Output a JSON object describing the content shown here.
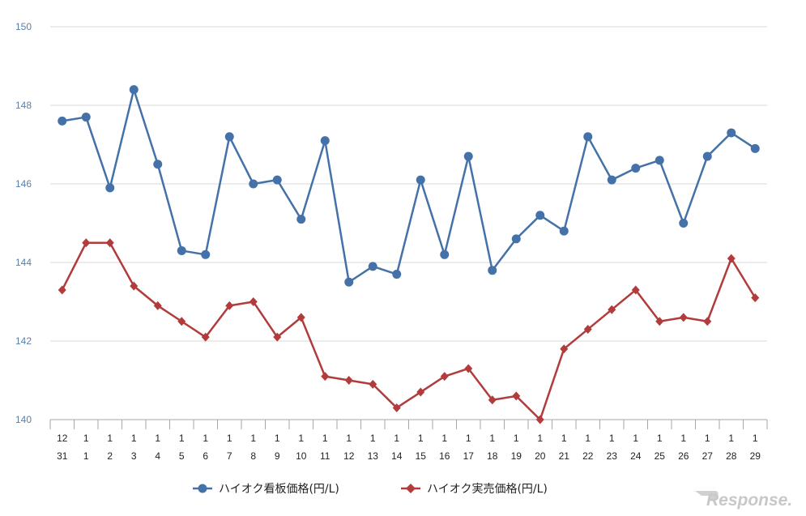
{
  "chart_data": {
    "type": "line",
    "x_month": [
      "12",
      "1",
      "1",
      "1",
      "1",
      "1",
      "1",
      "1",
      "1",
      "1",
      "1",
      "1",
      "1",
      "1",
      "1",
      "1",
      "1",
      "1",
      "1",
      "1",
      "1",
      "1",
      "1",
      "1",
      "1",
      "1",
      "1",
      "1",
      "1",
      "1"
    ],
    "x_day": [
      "31",
      "1",
      "2",
      "3",
      "4",
      "5",
      "6",
      "7",
      "8",
      "9",
      "10",
      "11",
      "12",
      "13",
      "14",
      "15",
      "16",
      "17",
      "18",
      "19",
      "20",
      "21",
      "22",
      "23",
      "24",
      "25",
      "26",
      "27",
      "28",
      "29"
    ],
    "ylim": [
      140,
      150
    ],
    "yticks": [
      "140",
      "142",
      "144",
      "146",
      "148",
      "150"
    ],
    "grid": true,
    "legend_position": "bottom",
    "series": [
      {
        "name": "ハイオク看板価格(円/L)",
        "color": "#4472a8",
        "marker": "circle",
        "values": [
          147.6,
          147.7,
          145.9,
          148.4,
          146.5,
          144.3,
          144.2,
          147.2,
          146.0,
          146.1,
          145.1,
          147.1,
          143.5,
          143.9,
          143.7,
          146.1,
          144.2,
          146.7,
          143.8,
          144.6,
          145.2,
          144.8,
          147.2,
          146.1,
          146.4,
          146.6,
          145.0,
          146.7,
          147.3,
          146.9
        ]
      },
      {
        "name": "ハイオク実売価格(円/L)",
        "color": "#b23b3b",
        "marker": "diamond",
        "values": [
          143.3,
          144.5,
          144.5,
          143.4,
          142.9,
          142.5,
          142.1,
          142.9,
          143.0,
          142.1,
          142.6,
          141.1,
          141.0,
          140.9,
          140.3,
          140.7,
          141.1,
          141.3,
          140.5,
          140.6,
          140.0,
          141.8,
          142.3,
          142.8,
          143.3,
          142.5,
          142.6,
          142.5,
          144.1,
          143.1
        ]
      }
    ]
  },
  "watermark": {
    "text": "Response."
  }
}
